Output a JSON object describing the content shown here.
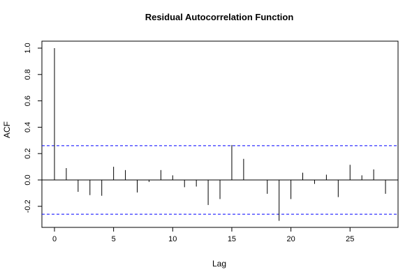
{
  "colors": {
    "bars": "#000000",
    "confidence_band": "#0000ff",
    "background": "#ffffff"
  },
  "chart_data": {
    "type": "bar",
    "title": "Residual Autocorrelation Function",
    "xlabel": "Lag",
    "ylabel": "ACF",
    "xlim": [
      0,
      28
    ],
    "ylim": [
      -0.31,
      1.0
    ],
    "x_ticks": [
      0,
      5,
      10,
      15,
      20,
      25
    ],
    "y_ticks": [
      -0.2,
      0.0,
      0.2,
      0.4,
      0.6,
      0.8,
      1.0
    ],
    "y_tick_labels": [
      "-0.2",
      "0.0",
      "0.2",
      "0.4",
      "0.6",
      "0.8",
      "1.0"
    ],
    "confidence_bound": 0.26,
    "grid": false,
    "lags": [
      0,
      1,
      2,
      3,
      4,
      5,
      6,
      7,
      8,
      9,
      10,
      11,
      12,
      13,
      14,
      15,
      16,
      17,
      18,
      19,
      20,
      21,
      22,
      23,
      24,
      25,
      26,
      27,
      28
    ],
    "values": [
      1.0,
      0.09,
      -0.09,
      -0.115,
      -0.12,
      0.1,
      0.075,
      -0.095,
      -0.015,
      0.075,
      0.035,
      -0.055,
      -0.05,
      -0.19,
      -0.145,
      0.265,
      0.16,
      0.0,
      -0.105,
      -0.31,
      -0.145,
      0.055,
      -0.03,
      0.04,
      -0.13,
      0.115,
      0.035,
      0.08,
      -0.105
    ]
  }
}
